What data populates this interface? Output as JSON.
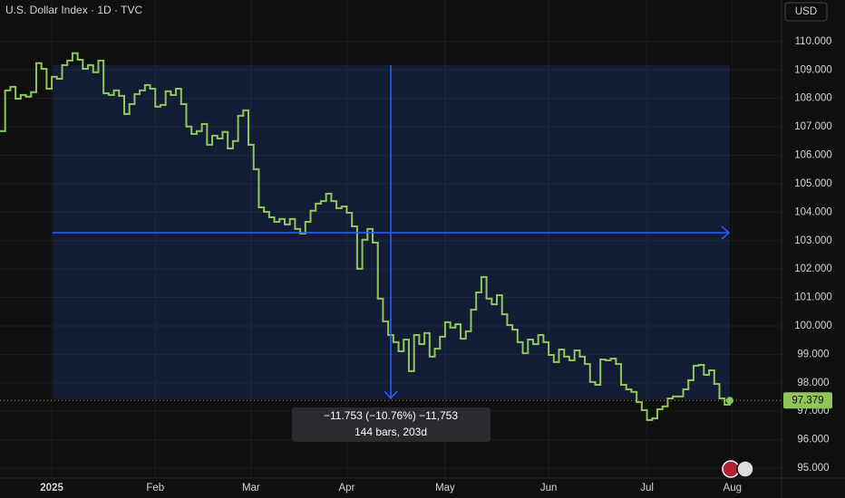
{
  "chart_data": {
    "type": "line",
    "step": true,
    "title": "U.S. Dollar Index · 1D · TVC",
    "currency": "USD",
    "color": "#8fc65a",
    "grid": true,
    "values": [
      106.85,
      108.28,
      108.41,
      107.99,
      108.12,
      108.06,
      108.22,
      109.24,
      109.04,
      108.34,
      108.76,
      108.69,
      109.17,
      109.33,
      109.59,
      109.36,
      109.04,
      109.17,
      108.92,
      109.33,
      108.18,
      108.12,
      108.28,
      108.09,
      107.45,
      107.8,
      108.15,
      108.28,
      108.47,
      108.34,
      107.71,
      107.77,
      108.25,
      108.12,
      108.34,
      107.8,
      107.01,
      106.75,
      106.85,
      107.1,
      106.37,
      106.69,
      106.59,
      106.82,
      106.24,
      106.5,
      107.39,
      107.58,
      106.37,
      105.51,
      104.17,
      104.01,
      103.82,
      103.66,
      103.76,
      103.57,
      103.76,
      103.41,
      103.25,
      103.66,
      104.05,
      104.3,
      104.39,
      104.65,
      104.39,
      104.14,
      104.2,
      103.98,
      103.5,
      102.01,
      103.03,
      103.41,
      102.93,
      100.96,
      100.16,
      99.68,
      99.43,
      99.11,
      99.52,
      98.41,
      99.68,
      99.36,
      99.75,
      98.92,
      99.2,
      99.62,
      100.13,
      99.94,
      100.06,
      99.55,
      99.81,
      100.57,
      101.18,
      101.72,
      100.96,
      100.76,
      101.08,
      100.41,
      100.03,
      99.87,
      99.43,
      99.04,
      99.52,
      99.36,
      99.68,
      99.43,
      98.98,
      98.73,
      99.17,
      98.92,
      98.79,
      99.14,
      98.92,
      98.66,
      98.03,
      97.93,
      98.82,
      98.79,
      98.85,
      98.66,
      97.93,
      97.77,
      97.68,
      97.32,
      97.04,
      96.69,
      96.75,
      97.07,
      97.17,
      97.45,
      97.52,
      97.52,
      97.77,
      98.09,
      98.6,
      98.63,
      98.28,
      98.44,
      97.96,
      97.45,
      97.23,
      97.379
    ],
    "xlim": [
      0,
      151
    ],
    "xticks": [
      {
        "value": 10,
        "label": "2025"
      },
      {
        "value": 30,
        "label": "Feb"
      },
      {
        "value": 48.5,
        "label": "Mar"
      },
      {
        "value": 67,
        "label": "Apr"
      },
      {
        "value": 86,
        "label": "May"
      },
      {
        "value": 106,
        "label": "Jun"
      },
      {
        "value": 125,
        "label": "Jul"
      },
      {
        "value": 141.5,
        "label": "Aug"
      }
    ],
    "ylim": [
      94.65,
      111.46
    ],
    "yticks": [
      {
        "value": 95,
        "label": "95.000"
      },
      {
        "value": 96,
        "label": "96.000"
      },
      {
        "value": 97,
        "label": "97.000"
      },
      {
        "value": 98,
        "label": "98.000"
      },
      {
        "value": 99,
        "label": "99.000"
      },
      {
        "value": 100,
        "label": "100.000"
      },
      {
        "value": 101,
        "label": "101.000"
      },
      {
        "value": 102,
        "label": "102.000"
      },
      {
        "value": 103,
        "label": "103.000"
      },
      {
        "value": 104,
        "label": "104.000"
      },
      {
        "value": 105,
        "label": "105.000"
      },
      {
        "value": 106,
        "label": "106.000"
      },
      {
        "value": 107,
        "label": "107.000"
      },
      {
        "value": 108,
        "label": "108.000"
      },
      {
        "value": 109,
        "label": "109.000"
      },
      {
        "value": 110,
        "label": "110.000"
      }
    ],
    "measure": {
      "change": "−11.753 (−10.76%) −11,753",
      "span": "144 bars, 203d"
    }
  }
}
